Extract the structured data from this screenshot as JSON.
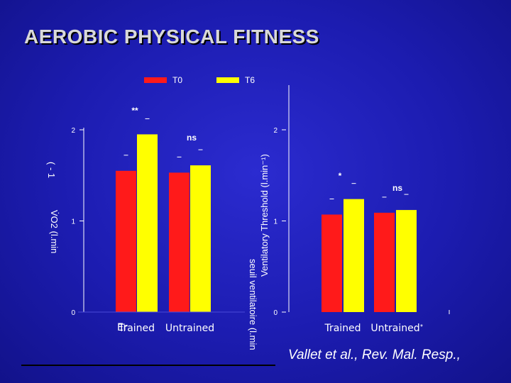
{
  "title": "AEROBIC PHYSICAL FITNESS",
  "legend": [
    {
      "label": "T0",
      "color": "#ff1a1a"
    },
    {
      "label": "T6",
      "color": "#ffff00"
    }
  ],
  "citation": "Vallet et al., Rev. Mal. Resp.,",
  "chart_data": [
    {
      "type": "bar",
      "categories": [
        "Trained",
        "Untrained"
      ],
      "category_prefix": "Er",
      "series": [
        {
          "name": "T0",
          "values": [
            1.55,
            1.53
          ]
        },
        {
          "name": "T6",
          "values": [
            1.95,
            1.61
          ]
        }
      ],
      "ylim": [
        0,
        2
      ],
      "yticks": [
        "0",
        "1",
        "2"
      ],
      "ylabel_fragments": [
        "( ‑ 1",
        "V̇O2 (l.min"
      ],
      "significance": [
        "**",
        "ns"
      ]
    },
    {
      "type": "bar",
      "categories": [
        "Trained",
        "Untrained"
      ],
      "category_suffix": "*",
      "series": [
        {
          "name": "T0",
          "values": [
            1.07,
            1.09
          ]
        },
        {
          "name": "T6",
          "values": [
            1.24,
            1.12
          ]
        }
      ],
      "ylim": [
        0,
        2
      ],
      "yticks": [
        "0",
        "1",
        "2"
      ],
      "ylabel": "Ventilatory Threshold (l.min⁻¹)",
      "ylabel_mirrored": "seuil ventilatoire (l.min",
      "significance": [
        "*",
        "ns"
      ]
    }
  ],
  "colors": {
    "t0": "#ff1a1a",
    "t6": "#ffff00",
    "background": "#1c1cb0"
  }
}
